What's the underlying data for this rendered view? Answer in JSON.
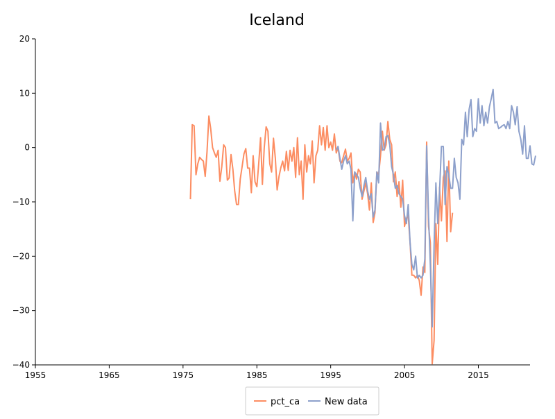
{
  "chart_data": {
    "type": "line",
    "title": "Iceland",
    "xlabel": "",
    "ylabel": "",
    "xlim": [
      1955,
      2022
    ],
    "ylim": [
      -40,
      20
    ],
    "x_ticks": [
      "1955",
      "1965",
      "1975",
      "1985",
      "1995",
      "2005",
      "2015"
    ],
    "y_ticks": [
      "20",
      "10",
      "0",
      "−10",
      "−20",
      "−30",
      "−40"
    ],
    "grid": false,
    "legend_position": "bottom-center",
    "series": [
      {
        "name": "pct_ca",
        "color": "#fc8d62",
        "points": [
          [
            1976.0,
            -9.5
          ],
          [
            1976.25,
            4.2
          ],
          [
            1976.5,
            4.0
          ],
          [
            1976.75,
            -5.0
          ],
          [
            1977.0,
            -3.0
          ],
          [
            1977.25,
            -1.8
          ],
          [
            1977.5,
            -2.2
          ],
          [
            1977.75,
            -2.5
          ],
          [
            1978.0,
            -5.3
          ],
          [
            1978.25,
            -0.8
          ],
          [
            1978.5,
            5.8
          ],
          [
            1978.75,
            3.5
          ],
          [
            1979.0,
            0.0
          ],
          [
            1979.25,
            -1.0
          ],
          [
            1979.5,
            -1.8
          ],
          [
            1979.75,
            -0.5
          ],
          [
            1980.0,
            -6.2
          ],
          [
            1980.25,
            -3.5
          ],
          [
            1980.5,
            0.5
          ],
          [
            1980.75,
            0.0
          ],
          [
            1981.0,
            -6.0
          ],
          [
            1981.25,
            -5.6
          ],
          [
            1981.5,
            -1.3
          ],
          [
            1981.75,
            -4.0
          ],
          [
            1982.0,
            -8.0
          ],
          [
            1982.25,
            -10.5
          ],
          [
            1982.5,
            -10.5
          ],
          [
            1982.75,
            -5.8
          ],
          [
            1983.0,
            -3.5
          ],
          [
            1983.25,
            -1.2
          ],
          [
            1983.5,
            -0.2
          ],
          [
            1983.75,
            -3.8
          ],
          [
            1984.0,
            -3.8
          ],
          [
            1984.25,
            -8.3
          ],
          [
            1984.5,
            -1.5
          ],
          [
            1984.75,
            -6.3
          ],
          [
            1985.0,
            -7.2
          ],
          [
            1985.25,
            -3.0
          ],
          [
            1985.5,
            1.8
          ],
          [
            1985.75,
            -6.8
          ],
          [
            1986.0,
            0.0
          ],
          [
            1986.25,
            3.8
          ],
          [
            1986.5,
            3.0
          ],
          [
            1986.75,
            -3.0
          ],
          [
            1987.0,
            -4.5
          ],
          [
            1987.25,
            1.7
          ],
          [
            1987.5,
            -2.0
          ],
          [
            1987.75,
            -7.8
          ],
          [
            1988.0,
            -5.3
          ],
          [
            1988.25,
            -3.7
          ],
          [
            1988.5,
            -2.5
          ],
          [
            1988.75,
            -4.3
          ],
          [
            1989.0,
            -0.7
          ],
          [
            1989.25,
            -4.2
          ],
          [
            1989.5,
            -0.5
          ],
          [
            1989.75,
            -2.5
          ],
          [
            1990.0,
            0.0
          ],
          [
            1990.25,
            -5.5
          ],
          [
            1990.5,
            1.8
          ],
          [
            1990.75,
            -5.0
          ],
          [
            1991.0,
            -2.5
          ],
          [
            1991.25,
            -9.5
          ],
          [
            1991.5,
            0.5
          ],
          [
            1991.75,
            -4.5
          ],
          [
            1992.0,
            -1.5
          ],
          [
            1992.25,
            -3.0
          ],
          [
            1992.5,
            1.2
          ],
          [
            1992.75,
            -6.5
          ],
          [
            1993.0,
            -1.5
          ],
          [
            1993.25,
            -0.5
          ],
          [
            1993.5,
            4.0
          ],
          [
            1993.75,
            0.5
          ],
          [
            1994.0,
            3.7
          ],
          [
            1994.25,
            -0.5
          ],
          [
            1994.5,
            4.0
          ],
          [
            1994.75,
            0.0
          ],
          [
            1995.0,
            1.0
          ],
          [
            1995.25,
            -0.5
          ],
          [
            1995.5,
            2.5
          ],
          [
            1995.75,
            -1.0
          ],
          [
            1996.0,
            0.0
          ],
          [
            1996.25,
            -2.5
          ],
          [
            1996.5,
            -2.8
          ],
          [
            1996.75,
            -1.5
          ],
          [
            1997.0,
            -0.3
          ],
          [
            1997.25,
            -2.5
          ],
          [
            1997.5,
            -2.0
          ],
          [
            1997.75,
            -1.0
          ],
          [
            1998.0,
            -6.5
          ],
          [
            1998.25,
            -4.5
          ],
          [
            1998.5,
            -5.8
          ],
          [
            1998.75,
            -4.0
          ],
          [
            1999.0,
            -4.5
          ],
          [
            1999.25,
            -9.5
          ],
          [
            1999.5,
            -8.0
          ],
          [
            1999.75,
            -6.5
          ],
          [
            2000.0,
            -8.5
          ],
          [
            2000.25,
            -11.5
          ],
          [
            2000.5,
            -6.5
          ],
          [
            2000.75,
            -13.8
          ],
          [
            2001.0,
            -12.0
          ],
          [
            2001.25,
            -4.5
          ],
          [
            2001.5,
            -5.0
          ],
          [
            2001.75,
            -1.5
          ],
          [
            2002.0,
            3.0
          ],
          [
            2002.25,
            -0.5
          ],
          [
            2002.5,
            0.5
          ],
          [
            2002.75,
            4.8
          ],
          [
            2003.0,
            1.5
          ],
          [
            2003.25,
            0.5
          ],
          [
            2003.5,
            -6.3
          ],
          [
            2003.75,
            -4.5
          ],
          [
            2004.0,
            -9.0
          ],
          [
            2004.25,
            -6.3
          ],
          [
            2004.5,
            -11.0
          ],
          [
            2004.75,
            -6.0
          ],
          [
            2005.0,
            -14.5
          ],
          [
            2005.25,
            -13.0
          ],
          [
            2005.5,
            -12.5
          ],
          [
            2005.75,
            -17.5
          ],
          [
            2006.0,
            -23.5
          ],
          [
            2006.25,
            -23.5
          ],
          [
            2006.5,
            -24.0
          ],
          [
            2006.75,
            -23.5
          ],
          [
            2007.0,
            -24.5
          ],
          [
            2007.25,
            -27.2
          ],
          [
            2007.5,
            -22.0
          ],
          [
            2007.75,
            -23.0
          ],
          [
            2008.0,
            1.0
          ],
          [
            2008.25,
            -14.5
          ],
          [
            2008.5,
            -17.5
          ],
          [
            2008.75,
            -39.8
          ],
          [
            2009.0,
            -35.5
          ],
          [
            2009.25,
            -14.0
          ],
          [
            2009.5,
            -21.5
          ],
          [
            2009.75,
            -7.3
          ],
          [
            2010.0,
            -13.5
          ],
          [
            2010.25,
            -5.5
          ],
          [
            2010.5,
            -4.3
          ],
          [
            2010.75,
            -17.3
          ],
          [
            2011.0,
            -2.5
          ],
          [
            2011.25,
            -15.5
          ],
          [
            2011.5,
            -12.0
          ]
        ]
      },
      {
        "name": "New data",
        "color": "#8da0cb",
        "points": [
          [
            1995.75,
            -0.5
          ],
          [
            1996.0,
            0.2
          ],
          [
            1996.25,
            -2.0
          ],
          [
            1996.5,
            -4.0
          ],
          [
            1996.75,
            -2.5
          ],
          [
            1997.0,
            -1.5
          ],
          [
            1997.25,
            -3.0
          ],
          [
            1997.5,
            -2.5
          ],
          [
            1997.75,
            -4.0
          ],
          [
            1998.0,
            -13.5
          ],
          [
            1998.25,
            -4.5
          ],
          [
            1998.5,
            -5.0
          ],
          [
            1998.75,
            -5.5
          ],
          [
            1999.0,
            -7.5
          ],
          [
            1999.25,
            -9.0
          ],
          [
            1999.5,
            -7.0
          ],
          [
            1999.75,
            -5.5
          ],
          [
            2000.0,
            -8.0
          ],
          [
            2000.25,
            -9.5
          ],
          [
            2000.5,
            -8.5
          ],
          [
            2000.75,
            -12.8
          ],
          [
            2001.0,
            -11.5
          ],
          [
            2001.25,
            -4.5
          ],
          [
            2001.5,
            -6.5
          ],
          [
            2001.75,
            4.5
          ],
          [
            2002.0,
            -0.5
          ],
          [
            2002.25,
            -0.3
          ],
          [
            2002.5,
            2.0
          ],
          [
            2002.75,
            2.2
          ],
          [
            2003.0,
            0.5
          ],
          [
            2003.25,
            -3.5
          ],
          [
            2003.5,
            -5.0
          ],
          [
            2003.75,
            -7.5
          ],
          [
            2004.0,
            -7.0
          ],
          [
            2004.25,
            -8.5
          ],
          [
            2004.5,
            -9.0
          ],
          [
            2004.75,
            -9.5
          ],
          [
            2005.0,
            -12.5
          ],
          [
            2005.25,
            -14.0
          ],
          [
            2005.5,
            -10.5
          ],
          [
            2005.75,
            -17.5
          ],
          [
            2006.0,
            -21.5
          ],
          [
            2006.25,
            -22.5
          ],
          [
            2006.5,
            -20.0
          ],
          [
            2006.75,
            -24.0
          ],
          [
            2007.0,
            -23.5
          ],
          [
            2007.25,
            -24.0
          ],
          [
            2007.5,
            -23.5
          ],
          [
            2007.75,
            -20.5
          ],
          [
            2008.0,
            0.3
          ],
          [
            2008.25,
            -12.5
          ],
          [
            2008.5,
            -21.5
          ],
          [
            2008.75,
            -33.0
          ],
          [
            2009.0,
            -18.0
          ],
          [
            2009.25,
            -6.5
          ],
          [
            2009.5,
            -14.0
          ],
          [
            2009.75,
            -8.0
          ],
          [
            2010.0,
            0.2
          ],
          [
            2010.25,
            0.2
          ],
          [
            2010.5,
            -10.5
          ],
          [
            2010.75,
            -3.5
          ],
          [
            2011.0,
            -5.0
          ],
          [
            2011.25,
            -7.5
          ],
          [
            2011.5,
            -7.5
          ],
          [
            2011.75,
            -2.0
          ],
          [
            2012.0,
            -5.5
          ],
          [
            2012.25,
            -6.5
          ],
          [
            2012.5,
            -9.5
          ],
          [
            2012.75,
            1.5
          ],
          [
            2013.0,
            0.5
          ],
          [
            2013.25,
            6.5
          ],
          [
            2013.5,
            2.0
          ],
          [
            2013.75,
            7.0
          ],
          [
            2014.0,
            8.8
          ],
          [
            2014.25,
            2.0
          ],
          [
            2014.5,
            3.5
          ],
          [
            2014.75,
            3.0
          ],
          [
            2015.0,
            9.0
          ],
          [
            2015.25,
            4.5
          ],
          [
            2015.5,
            7.7
          ],
          [
            2015.75,
            4.0
          ],
          [
            2016.0,
            6.5
          ],
          [
            2016.25,
            4.5
          ],
          [
            2016.5,
            7.5
          ],
          [
            2016.75,
            9.0
          ],
          [
            2017.0,
            10.7
          ],
          [
            2017.25,
            4.5
          ],
          [
            2017.5,
            4.8
          ],
          [
            2017.75,
            3.5
          ],
          [
            2018.0,
            3.7
          ],
          [
            2018.25,
            4.0
          ],
          [
            2018.5,
            4.2
          ],
          [
            2018.75,
            3.5
          ],
          [
            2019.0,
            4.8
          ],
          [
            2019.25,
            3.5
          ],
          [
            2019.5,
            7.7
          ],
          [
            2019.75,
            6.5
          ],
          [
            2020.0,
            4.2
          ],
          [
            2020.25,
            7.5
          ],
          [
            2020.5,
            3.0
          ],
          [
            2020.75,
            1.5
          ],
          [
            2021.0,
            -1.2
          ],
          [
            2021.25,
            4.0
          ],
          [
            2021.5,
            -2.0
          ],
          [
            2021.75,
            -2.0
          ],
          [
            2022.0,
            0.3
          ],
          [
            2022.25,
            -3.0
          ],
          [
            2022.5,
            -3.2
          ],
          [
            2022.75,
            -1.5
          ]
        ]
      }
    ]
  }
}
